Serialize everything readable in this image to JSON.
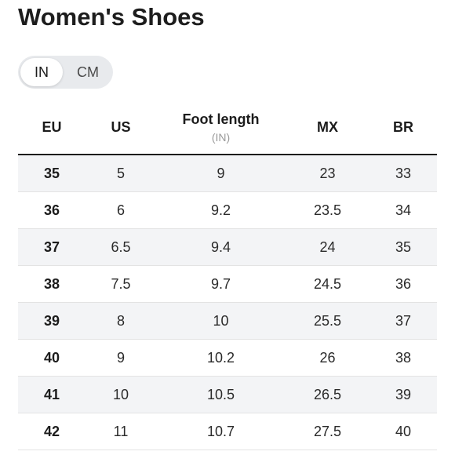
{
  "page": {
    "title": "Women's Shoes"
  },
  "unit_toggle": {
    "options": [
      "IN",
      "CM"
    ],
    "selected": "IN"
  },
  "table": {
    "headers": {
      "eu": "EU",
      "us": "US",
      "foot_length": "Foot length",
      "foot_length_unit": "(IN)",
      "mx": "MX",
      "br": "BR"
    },
    "rows": [
      {
        "eu": "35",
        "us": "5",
        "foot_length": "9",
        "mx": "23",
        "br": "33"
      },
      {
        "eu": "36",
        "us": "6",
        "foot_length": "9.2",
        "mx": "23.5",
        "br": "34"
      },
      {
        "eu": "37",
        "us": "6.5",
        "foot_length": "9.4",
        "mx": "24",
        "br": "35"
      },
      {
        "eu": "38",
        "us": "7.5",
        "foot_length": "9.7",
        "mx": "24.5",
        "br": "36"
      },
      {
        "eu": "39",
        "us": "8",
        "foot_length": "10",
        "mx": "25.5",
        "br": "37"
      },
      {
        "eu": "40",
        "us": "9",
        "foot_length": "10.2",
        "mx": "26",
        "br": "38"
      },
      {
        "eu": "41",
        "us": "10",
        "foot_length": "10.5",
        "mx": "26.5",
        "br": "39"
      },
      {
        "eu": "42",
        "us": "11",
        "foot_length": "10.7",
        "mx": "27.5",
        "br": "40"
      }
    ]
  },
  "colors": {
    "shaded_row": "#f3f4f6",
    "toggle_track": "#e8eaed",
    "header_rule": "#1c1c1c"
  }
}
